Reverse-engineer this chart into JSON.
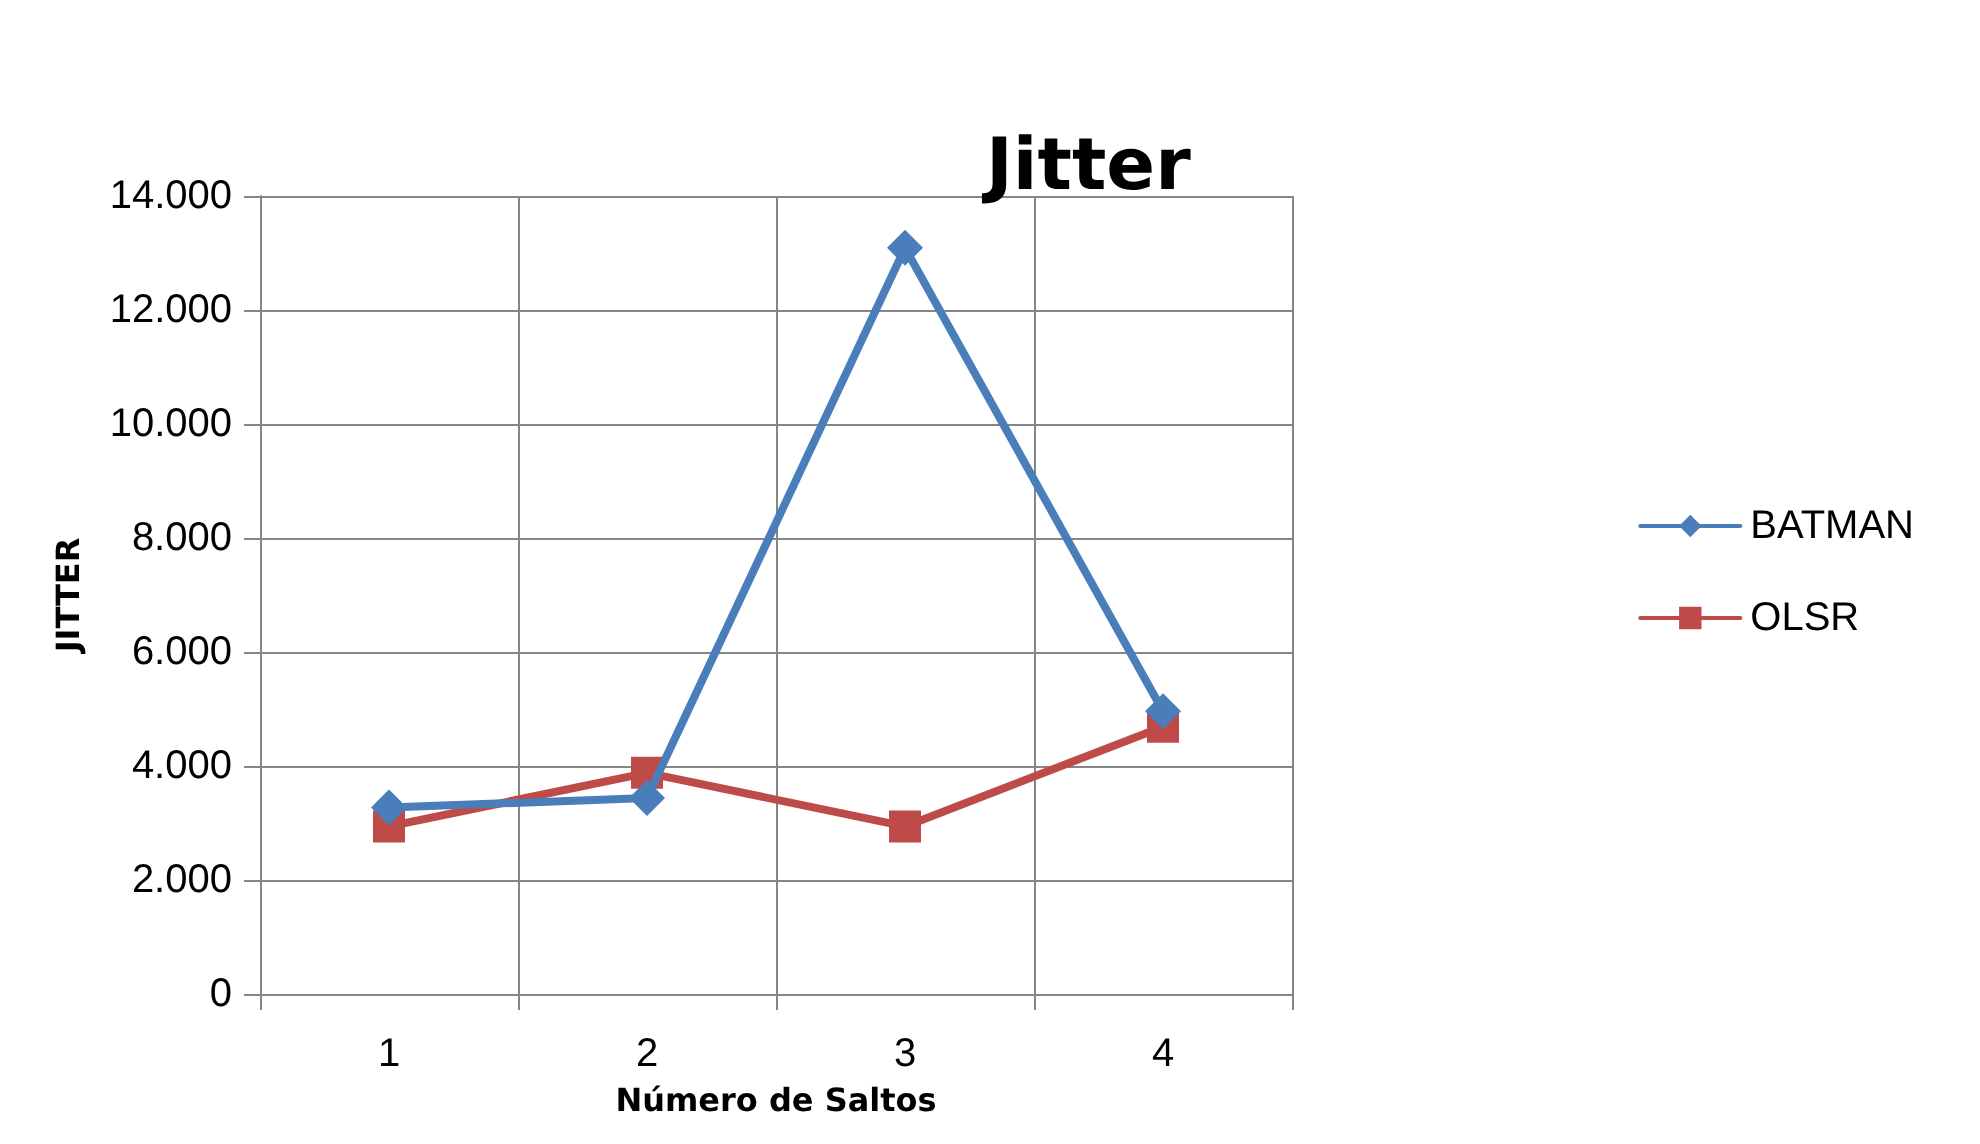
{
  "chart_data": {
    "type": "line",
    "title": "Jitter",
    "xlabel": "Número de Saltos",
    "ylabel": "JITTER",
    "categories": [
      "1",
      "2",
      "3",
      "4"
    ],
    "series": [
      {
        "name": "BATMAN",
        "color": "#4a7ebb",
        "marker": "diamond",
        "values": [
          3270,
          3440,
          13090,
          4960
        ]
      },
      {
        "name": "OLSR",
        "color": "#be4b48",
        "marker": "square",
        "values": [
          2940,
          3880,
          2940,
          4690
        ]
      }
    ],
    "ylim": [
      0,
      14000
    ],
    "yticks": [
      0,
      {
        "value": 2000,
        "label": "2.000"
      },
      {
        "value": 4000,
        "label": "4.000"
      },
      {
        "value": 6000,
        "label": "6.000"
      },
      {
        "value": 8000,
        "label": "8.000"
      },
      {
        "value": 10000,
        "label": "10.000"
      },
      {
        "value": 12000,
        "label": "12.000"
      },
      {
        "value": 14000,
        "label": "14.000"
      }
    ],
    "grid": true,
    "legend": "right",
    "line_style": "solid"
  }
}
